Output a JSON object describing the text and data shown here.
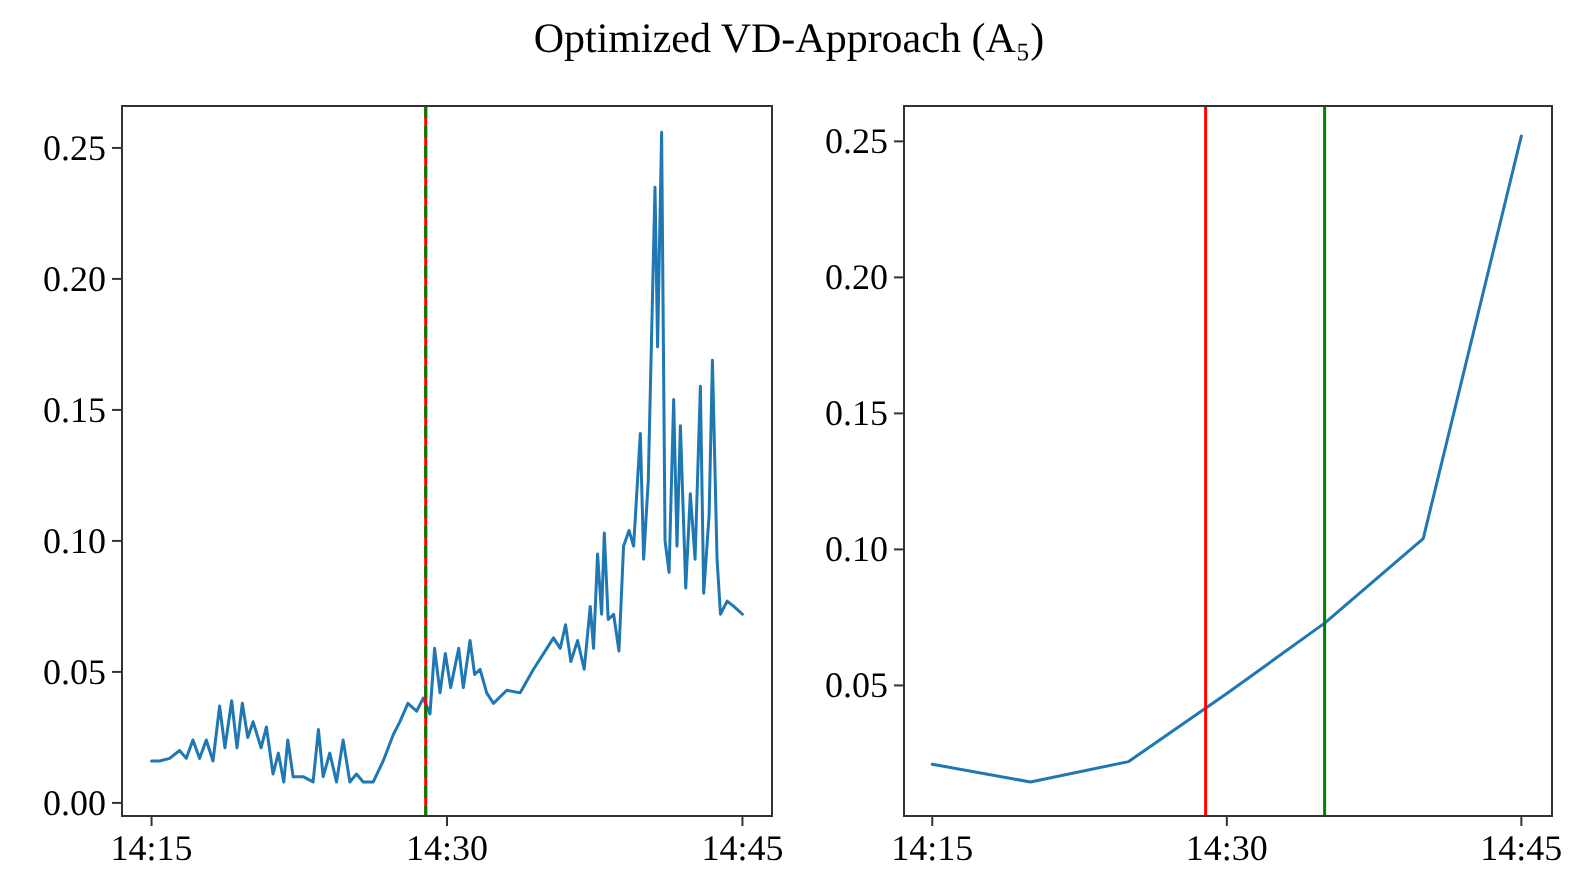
{
  "chart_data": [
    {
      "type": "line",
      "title": "Optimized VD-Approach (A₅)",
      "xlim": [
        14.225,
        14.775
      ],
      "ylim": [
        -0.005,
        0.266
      ],
      "xticks": [
        {
          "value": 14.25,
          "label": "14:15"
        },
        {
          "value": 14.5,
          "label": "14:30"
        },
        {
          "value": 14.75,
          "label": "14:45"
        }
      ],
      "yticks": [
        {
          "value": 0,
          "label": "0.00"
        },
        {
          "value": 0.05,
          "label": "0.05"
        },
        {
          "value": 0.1,
          "label": "0.10"
        },
        {
          "value": 0.15,
          "label": "0.15"
        },
        {
          "value": 0.2,
          "label": "0.20"
        },
        {
          "value": 0.25,
          "label": "0.25"
        }
      ],
      "ref_lines": [
        {
          "axis": "x",
          "value": 14.482,
          "color": "#ff0000"
        },
        {
          "axis": "x",
          "value": 14.482,
          "color": "#008000",
          "line_style": "dashed"
        }
      ],
      "series": [
        {
          "color": "#1f77b4",
          "x": [
            14.25,
            14.2568,
            14.2653,
            14.2737,
            14.2794,
            14.285,
            14.2907,
            14.2963,
            14.302,
            14.3076,
            14.3121,
            14.3178,
            14.3223,
            14.3268,
            14.3314,
            14.3359,
            14.3427,
            14.3472,
            14.3528,
            14.3573,
            14.3619,
            14.3653,
            14.3698,
            14.3782,
            14.3867,
            14.3912,
            14.3952,
            14.4008,
            14.4065,
            14.4121,
            14.4178,
            14.4234,
            14.4291,
            14.4376,
            14.446,
            14.4545,
            14.4602,
            14.4669,
            14.4743,
            14.4799,
            14.4856,
            14.4895,
            14.4941,
            14.4986,
            14.5031,
            14.5099,
            14.5138,
            14.5195,
            14.5234,
            14.528,
            14.5336,
            14.5393,
            14.5506,
            14.5619,
            14.5732,
            14.5845,
            14.5901,
            14.5958,
            14.6003,
            14.6048,
            14.6105,
            14.6161,
            14.6212,
            14.624,
            14.6274,
            14.6308,
            14.6331,
            14.6364,
            14.641,
            14.6455,
            14.6494,
            14.654,
            14.6579,
            14.6636,
            14.6664,
            14.6703,
            14.676,
            14.6782,
            14.6816,
            14.6845,
            14.6879,
            14.6918,
            14.6946,
            14.6975,
            14.702,
            14.7059,
            14.7099,
            14.7144,
            14.7172,
            14.7218,
            14.7246,
            14.7285,
            14.7314,
            14.737,
            14.7427,
            14.75
          ],
          "values": [
            0.016,
            0.016,
            0.017,
            0.02,
            0.017,
            0.024,
            0.017,
            0.024,
            0.016,
            0.037,
            0.021,
            0.039,
            0.021,
            0.038,
            0.025,
            0.031,
            0.021,
            0.029,
            0.011,
            0.019,
            0.008,
            0.024,
            0.01,
            0.01,
            0.008,
            0.028,
            0.01,
            0.019,
            0.008,
            0.024,
            0.008,
            0.011,
            0.008,
            0.008,
            0.016,
            0.026,
            0.031,
            0.038,
            0.035,
            0.04,
            0.034,
            0.059,
            0.042,
            0.057,
            0.044,
            0.059,
            0.044,
            0.062,
            0.049,
            0.051,
            0.042,
            0.038,
            0.043,
            0.042,
            0.051,
            0.059,
            0.063,
            0.059,
            0.068,
            0.054,
            0.062,
            0.051,
            0.075,
            0.059,
            0.095,
            0.072,
            0.103,
            0.07,
            0.072,
            0.058,
            0.098,
            0.104,
            0.098,
            0.141,
            0.093,
            0.123,
            0.235,
            0.174,
            0.256,
            0.1,
            0.088,
            0.154,
            0.098,
            0.144,
            0.082,
            0.118,
            0.093,
            0.159,
            0.08,
            0.11,
            0.169,
            0.093,
            0.072,
            0.077,
            0.075,
            0.072
          ]
        }
      ]
    },
    {
      "type": "line",
      "xlim": [
        14.226,
        14.776
      ],
      "ylim": [
        0.002,
        0.263
      ],
      "xticks": [
        {
          "value": 14.25,
          "label": "14:15"
        },
        {
          "value": 14.5,
          "label": "14:30"
        },
        {
          "value": 14.75,
          "label": "14:45"
        }
      ],
      "yticks": [
        {
          "value": 0.05,
          "label": "0.05"
        },
        {
          "value": 0.1,
          "label": "0.10"
        },
        {
          "value": 0.15,
          "label": "0.15"
        },
        {
          "value": 0.2,
          "label": "0.20"
        },
        {
          "value": 0.25,
          "label": "0.25"
        }
      ],
      "ref_lines": [
        {
          "axis": "x",
          "value": 14.482,
          "color": "#ff0000"
        },
        {
          "axis": "x",
          "value": 14.583,
          "color": "#008000"
        }
      ],
      "series": [
        {
          "color": "#1f77b4",
          "x": [
            14.25,
            14.3333,
            14.4167,
            14.5,
            14.5833,
            14.6667,
            14.75
          ],
          "values": [
            0.021,
            0.0145,
            0.022,
            0.047,
            0.073,
            0.104,
            0.252
          ]
        }
      ]
    }
  ]
}
